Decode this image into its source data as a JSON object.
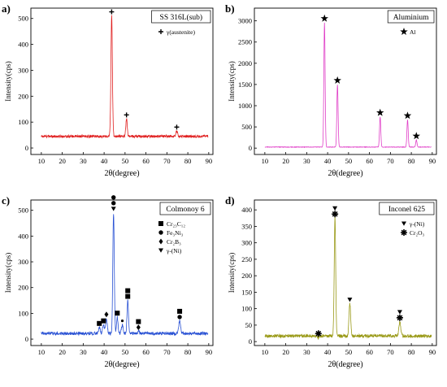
{
  "chart_data": [
    {
      "type": "line",
      "panel_label": "a)",
      "title": "SS 316L(sub)",
      "xlabel": "2θ(degree)",
      "ylabel": "Intensity(cps)",
      "xlim": [
        5,
        92
      ],
      "ylim": [
        -25,
        540
      ],
      "xticks": [
        "10",
        "20",
        "30",
        "40",
        "50",
        "60",
        "70",
        "80",
        "90"
      ],
      "yticks": [
        "0",
        "100",
        "200",
        "300",
        "400",
        "500"
      ],
      "color": "#e02020",
      "background": 45,
      "noise": 5,
      "peaks": [
        {
          "x": 43.6,
          "y": 510,
          "w": 0.35
        },
        {
          "x": 50.7,
          "y": 112,
          "w": 0.35
        },
        {
          "x": 74.7,
          "y": 65,
          "w": 0.4
        }
      ],
      "markers": [
        {
          "x": 43.6,
          "y": 510,
          "symbols": [
            "plus"
          ]
        },
        {
          "x": 50.7,
          "y": 112,
          "symbols": [
            "plus"
          ]
        },
        {
          "x": 74.7,
          "y": 65,
          "symbols": [
            "plus"
          ]
        }
      ],
      "legend": [
        {
          "symbol": "plus",
          "label": "γ(austenite)"
        }
      ],
      "legend_placement": "top-right",
      "grid": false
    },
    {
      "type": "line",
      "panel_label": "b)",
      "title": "Aluminium",
      "xlabel": "2θ(degree)",
      "ylabel": "Intensity(cps)",
      "xlim": [
        5,
        92
      ],
      "ylim": [
        -150,
        3300
      ],
      "xticks": [
        "10",
        "20",
        "30",
        "40",
        "50",
        "60",
        "70",
        "80",
        "90"
      ],
      "yticks": [
        "0",
        "500",
        "1000",
        "1500",
        "2000",
        "2500",
        "3000"
      ],
      "color": "#e040c8",
      "background": 25,
      "noise": 6,
      "peaks": [
        {
          "x": 38.5,
          "y": 2960,
          "w": 0.3
        },
        {
          "x": 44.7,
          "y": 1500,
          "w": 0.3
        },
        {
          "x": 65.1,
          "y": 740,
          "w": 0.3
        },
        {
          "x": 78.2,
          "y": 670,
          "w": 0.3
        },
        {
          "x": 82.4,
          "y": 190,
          "w": 0.3
        }
      ],
      "markers": [
        {
          "x": 38.5,
          "y": 2960,
          "symbols": [
            "star"
          ]
        },
        {
          "x": 44.7,
          "y": 1500,
          "symbols": [
            "star"
          ]
        },
        {
          "x": 65.1,
          "y": 740,
          "symbols": [
            "star"
          ]
        },
        {
          "x": 78.2,
          "y": 670,
          "symbols": [
            "star"
          ]
        },
        {
          "x": 82.4,
          "y": 190,
          "symbols": [
            "star"
          ]
        }
      ],
      "legend": [
        {
          "symbol": "star",
          "label": "Al"
        }
      ],
      "legend_placement": "top-right",
      "grid": false
    },
    {
      "type": "line",
      "panel_label": "c)",
      "title": "Colmonoy 6",
      "xlabel": "2θ(degree)",
      "ylabel": "Intensity(cps)",
      "xlim": [
        5,
        92
      ],
      "ylim": [
        -25,
        540
      ],
      "xticks": [
        "10",
        "20",
        "30",
        "40",
        "50",
        "60",
        "70",
        "80",
        "90"
      ],
      "yticks": [
        "0",
        "100",
        "200",
        "300",
        "400",
        "500"
      ],
      "color": "#2a52d4",
      "background": 22,
      "noise": 6,
      "peaks": [
        {
          "x": 37.7,
          "y": 45,
          "w": 0.4
        },
        {
          "x": 39.7,
          "y": 55,
          "w": 0.4
        },
        {
          "x": 41.1,
          "y": 80,
          "w": 0.4
        },
        {
          "x": 44.5,
          "y": 490,
          "w": 0.35
        },
        {
          "x": 46.3,
          "y": 85,
          "w": 0.35
        },
        {
          "x": 48.7,
          "y": 55,
          "w": 0.4
        },
        {
          "x": 51.3,
          "y": 150,
          "w": 0.35
        },
        {
          "x": 56.4,
          "y": 30,
          "w": 0.4
        },
        {
          "x": 76.1,
          "y": 70,
          "w": 0.45
        }
      ],
      "markers": [
        {
          "x": 37.7,
          "y": 45,
          "symbols": [
            "square"
          ]
        },
        {
          "x": 39.7,
          "y": 55,
          "symbols": [
            "square"
          ]
        },
        {
          "x": 41.1,
          "y": 80,
          "symbols": [
            "diamond"
          ]
        },
        {
          "x": 44.5,
          "y": 490,
          "symbols": [
            "circle",
            "circle",
            "triangle"
          ]
        },
        {
          "x": 46.3,
          "y": 85,
          "symbols": [
            "square"
          ]
        },
        {
          "x": 48.7,
          "y": 55,
          "symbols": [
            "smallcircle"
          ]
        },
        {
          "x": 51.3,
          "y": 150,
          "symbols": [
            "square",
            "square"
          ]
        },
        {
          "x": 56.4,
          "y": 30,
          "symbols": [
            "square",
            "diamond"
          ]
        },
        {
          "x": 76.1,
          "y": 70,
          "symbols": [
            "square",
            "circle"
          ]
        }
      ],
      "legend": [
        {
          "symbol": "square",
          "label": "Cr₂₃C₁₂"
        },
        {
          "symbol": "circle",
          "label": "Fe₃Ni₃"
        },
        {
          "symbol": "diamond",
          "label": "Cr₂B₃"
        },
        {
          "symbol": "triangle",
          "label": "γ-(Ni)"
        }
      ],
      "legend_placement": "top-right",
      "grid": false
    },
    {
      "type": "line",
      "panel_label": "d)",
      "title": "Inconel 625",
      "xlabel": "2θ(degree)",
      "ylabel": "Intensity(cps)",
      "xlim": [
        5,
        92
      ],
      "ylim": [
        -12,
        430
      ],
      "xticks": [
        "10",
        "20",
        "30",
        "40",
        "50",
        "60",
        "70",
        "80",
        "90"
      ],
      "yticks": [
        "0",
        "50",
        "100",
        "150",
        "200",
        "250",
        "300",
        "350",
        "400"
      ],
      "color": "#9a9a18",
      "background": 17,
      "noise": 5,
      "peaks": [
        {
          "x": 35.6,
          "y": 12,
          "w": 0.4
        },
        {
          "x": 43.5,
          "y": 375,
          "w": 0.35
        },
        {
          "x": 50.6,
          "y": 115,
          "w": 0.4
        },
        {
          "x": 74.5,
          "y": 60,
          "w": 0.45
        }
      ],
      "markers": [
        {
          "x": 35.6,
          "y": 12,
          "symbols": [
            "asterisk"
          ]
        },
        {
          "x": 43.5,
          "y": 375,
          "symbols": [
            "triangle",
            "asterisk"
          ]
        },
        {
          "x": 50.6,
          "y": 115,
          "symbols": [
            "triangle"
          ]
        },
        {
          "x": 74.5,
          "y": 60,
          "symbols": [
            "triangle",
            "asterisk"
          ]
        }
      ],
      "legend": [
        {
          "symbol": "triangle",
          "label": "γ-(Ni)"
        },
        {
          "symbol": "asterisk",
          "label": "Cr₂O₃"
        }
      ],
      "legend_placement": "top-right",
      "grid": false
    }
  ]
}
